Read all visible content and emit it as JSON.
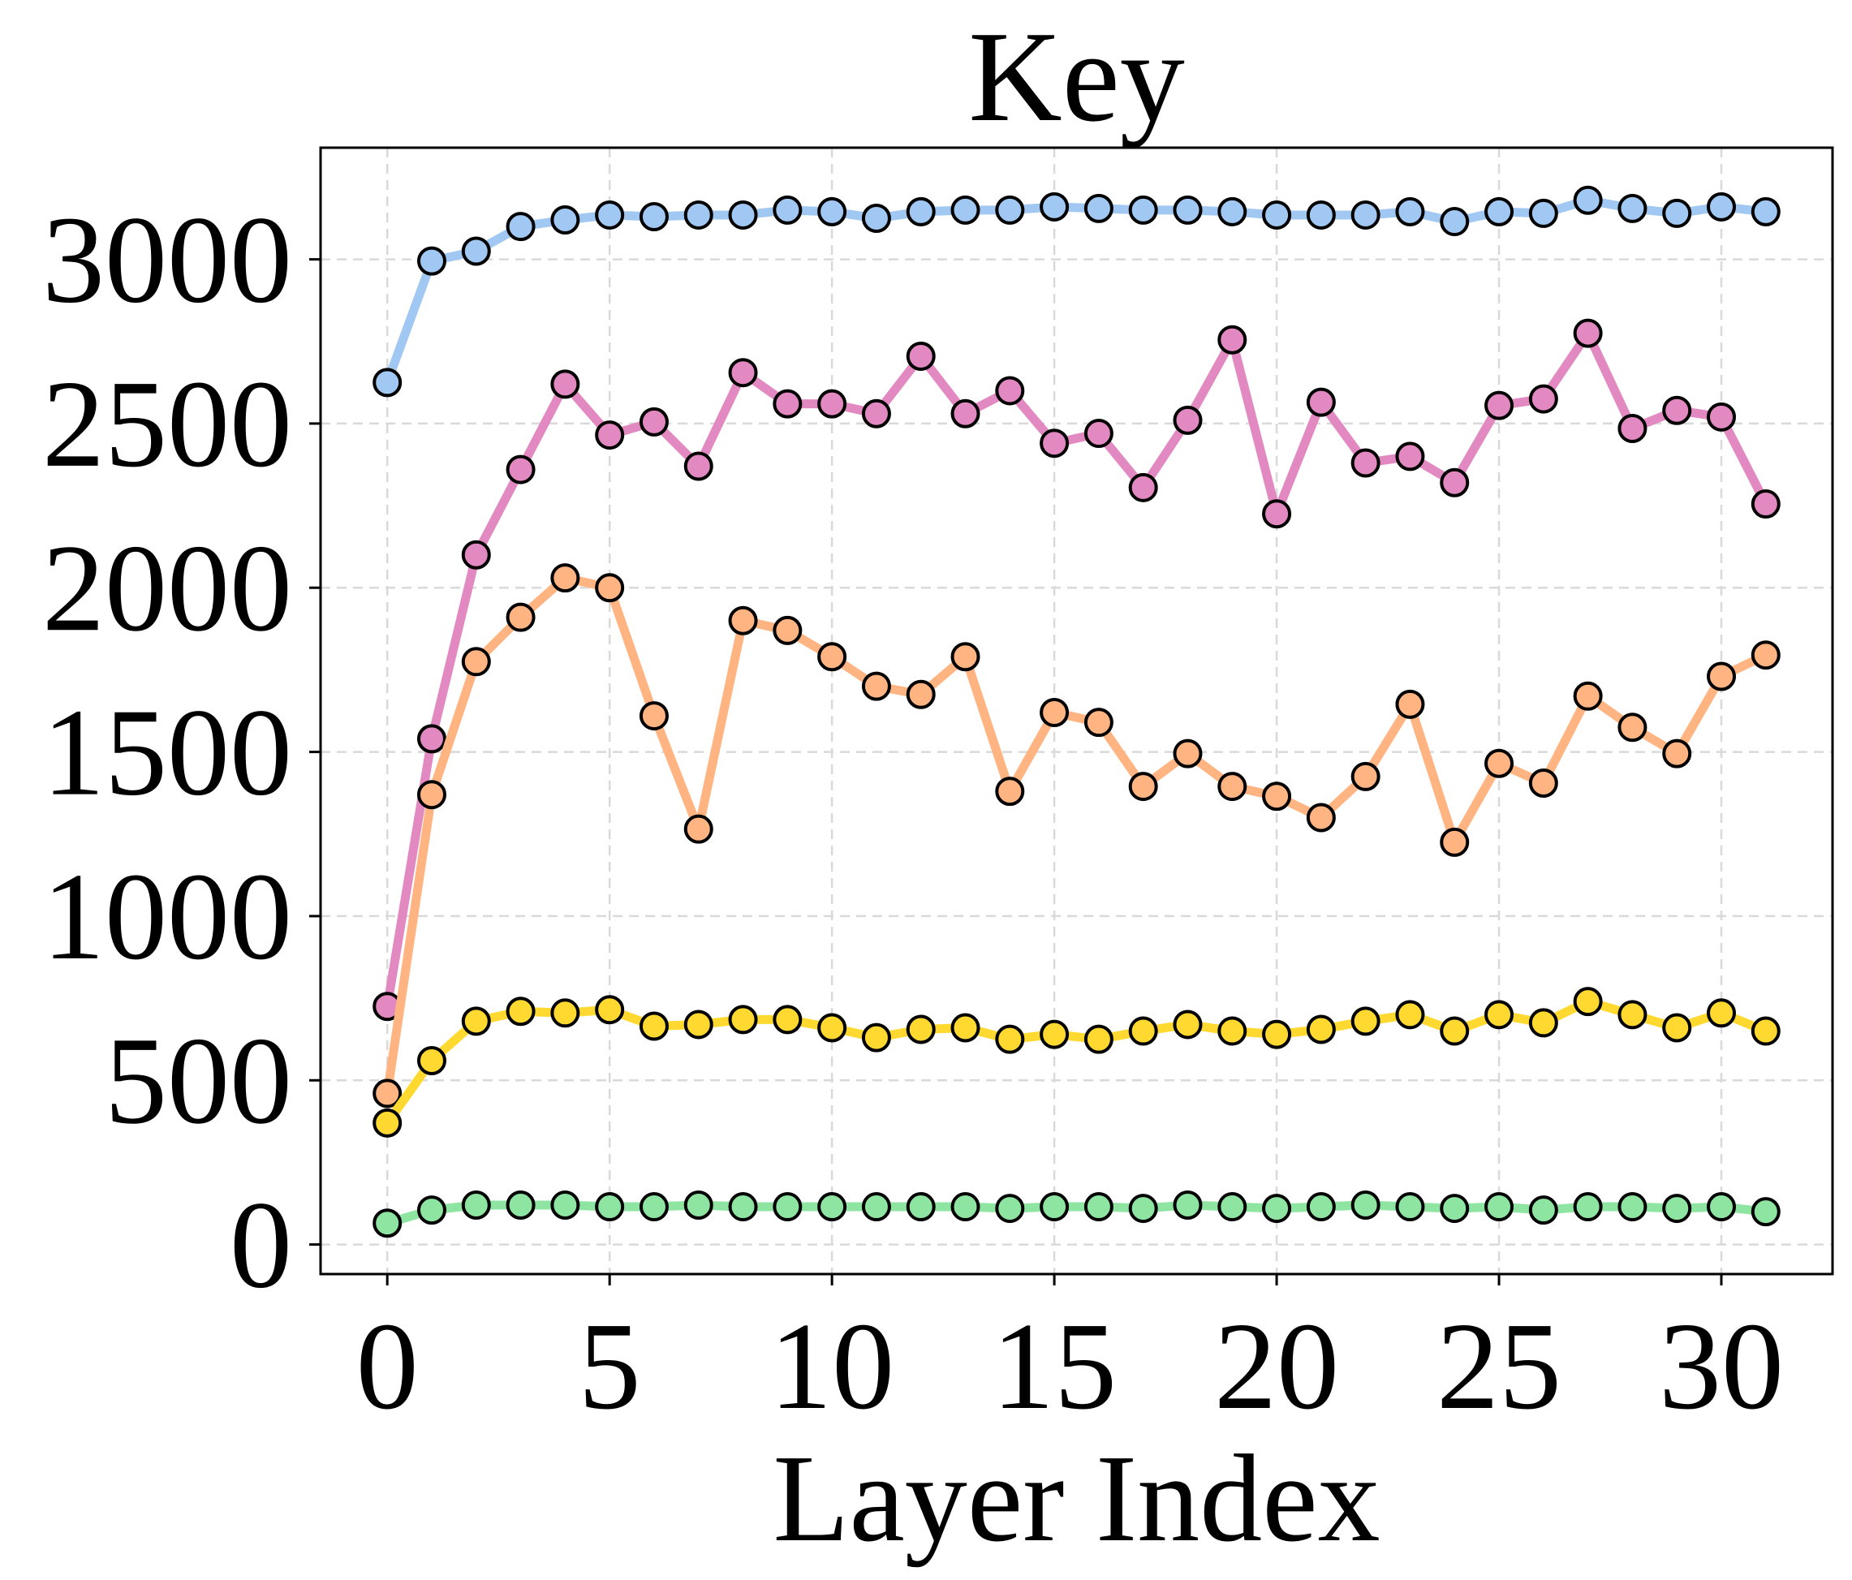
{
  "chart_data": {
    "type": "line",
    "title": "Key",
    "xlabel": "Layer Index",
    "ylabel": "",
    "xlim": [
      -1.5,
      32.5
    ],
    "ylim": [
      -90,
      3340
    ],
    "x_ticks": [
      0,
      5,
      10,
      15,
      20,
      25,
      30
    ],
    "y_ticks": [
      0,
      500,
      1000,
      1500,
      2000,
      2500,
      3000
    ],
    "grid": true,
    "legend": "none",
    "x": [
      0,
      1,
      2,
      3,
      4,
      5,
      6,
      7,
      8,
      9,
      10,
      11,
      12,
      13,
      14,
      15,
      16,
      17,
      18,
      19,
      20,
      21,
      22,
      23,
      24,
      25,
      26,
      27,
      28,
      29,
      30,
      31
    ],
    "series": [
      {
        "color": "#a1c8f2",
        "values": [
          2625,
          2995,
          3025,
          3100,
          3120,
          3135,
          3130,
          3135,
          3135,
          3150,
          3145,
          3125,
          3145,
          3150,
          3150,
          3160,
          3155,
          3150,
          3150,
          3145,
          3135,
          3135,
          3135,
          3145,
          3115,
          3145,
          3140,
          3180,
          3155,
          3140,
          3160,
          3145
        ]
      },
      {
        "color": "#e389c2",
        "values": [
          725,
          1540,
          2100,
          2360,
          2620,
          2465,
          2505,
          2370,
          2655,
          2560,
          2560,
          2530,
          2705,
          2530,
          2600,
          2440,
          2470,
          2305,
          2510,
          2755,
          2225,
          2565,
          2380,
          2400,
          2320,
          2555,
          2575,
          2775,
          2485,
          2540,
          2520,
          2255
        ]
      },
      {
        "color": "#ffb482",
        "values": [
          460,
          1370,
          1775,
          1910,
          2030,
          2000,
          1610,
          1265,
          1900,
          1870,
          1790,
          1700,
          1675,
          1790,
          1380,
          1620,
          1590,
          1395,
          1495,
          1395,
          1365,
          1300,
          1425,
          1645,
          1225,
          1465,
          1405,
          1670,
          1575,
          1495,
          1730,
          1795
        ]
      },
      {
        "color": "#ffd92f",
        "values": [
          370,
          560,
          680,
          710,
          705,
          715,
          665,
          670,
          685,
          685,
          660,
          630,
          655,
          660,
          625,
          640,
          625,
          650,
          670,
          650,
          640,
          655,
          680,
          700,
          650,
          700,
          675,
          740,
          700,
          660,
          705,
          650
        ]
      },
      {
        "color": "#8de5a1",
        "values": [
          65,
          105,
          120,
          120,
          120,
          115,
          115,
          120,
          115,
          115,
          115,
          115,
          115,
          115,
          110,
          115,
          115,
          110,
          120,
          115,
          110,
          115,
          120,
          115,
          110,
          115,
          105,
          115,
          115,
          110,
          115,
          100
        ]
      }
    ]
  }
}
